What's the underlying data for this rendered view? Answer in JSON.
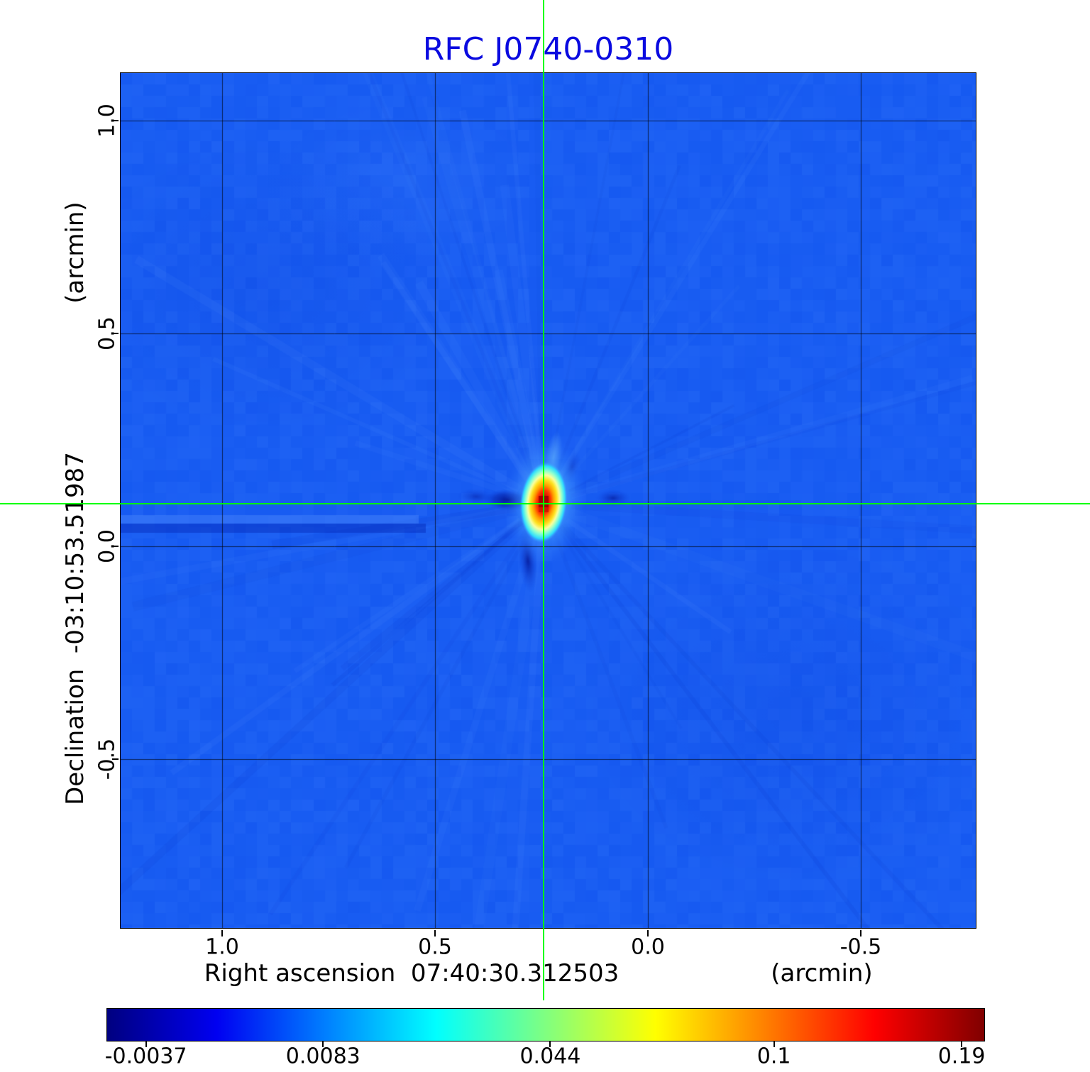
{
  "chart_data": {
    "type": "heatmap",
    "title": "RFC J0740-0310",
    "title_color": "#0a0ae0",
    "xlabel": "Right ascension  07:40:30.312503",
    "x_unit": "(arcmin)",
    "ylabel": "Declination  -03:10:53.51987",
    "y_unit": "(arcmin)",
    "x_ticks": [
      "1.0",
      "0.5",
      "0.0",
      "-0.5"
    ],
    "x_tick_values": [
      1.0,
      0.5,
      0.0,
      -0.5
    ],
    "y_ticks": [
      "1.0",
      "0.5",
      "0.0",
      "-0.5"
    ],
    "y_tick_values": [
      1.0,
      0.5,
      0.0,
      -0.5
    ],
    "xlim": [
      1.2383,
      -0.77
    ],
    "ylim": [
      -0.8967,
      1.1117
    ],
    "grid": true,
    "crosshair": {
      "x_arcmin": 0.245,
      "y_arcmin": 0.1,
      "color": "#00ff00"
    },
    "source": {
      "x_arcmin": 0.245,
      "y_arcmin": 0.1,
      "peak": 0.19
    },
    "background_color": "#1a5ef2",
    "colorbar_ticks": [
      "-0.0037",
      "0.0083",
      "0.044",
      "0.1",
      "0.19"
    ],
    "colorbar_tick_positions": [
      0.045,
      0.247,
      0.506,
      0.761,
      0.975
    ],
    "colormap": "jet",
    "colormap_stops": [
      {
        "pos": 0.0,
        "color": "#000080"
      },
      {
        "pos": 0.125,
        "color": "#0000f1"
      },
      {
        "pos": 0.25,
        "color": "#0080ff"
      },
      {
        "pos": 0.375,
        "color": "#00ffff"
      },
      {
        "pos": 0.5,
        "color": "#80ff80"
      },
      {
        "pos": 0.625,
        "color": "#ffff00"
      },
      {
        "pos": 0.75,
        "color": "#ff8000"
      },
      {
        "pos": 0.875,
        "color": "#ff0000"
      },
      {
        "pos": 1.0,
        "color": "#800000"
      }
    ]
  }
}
